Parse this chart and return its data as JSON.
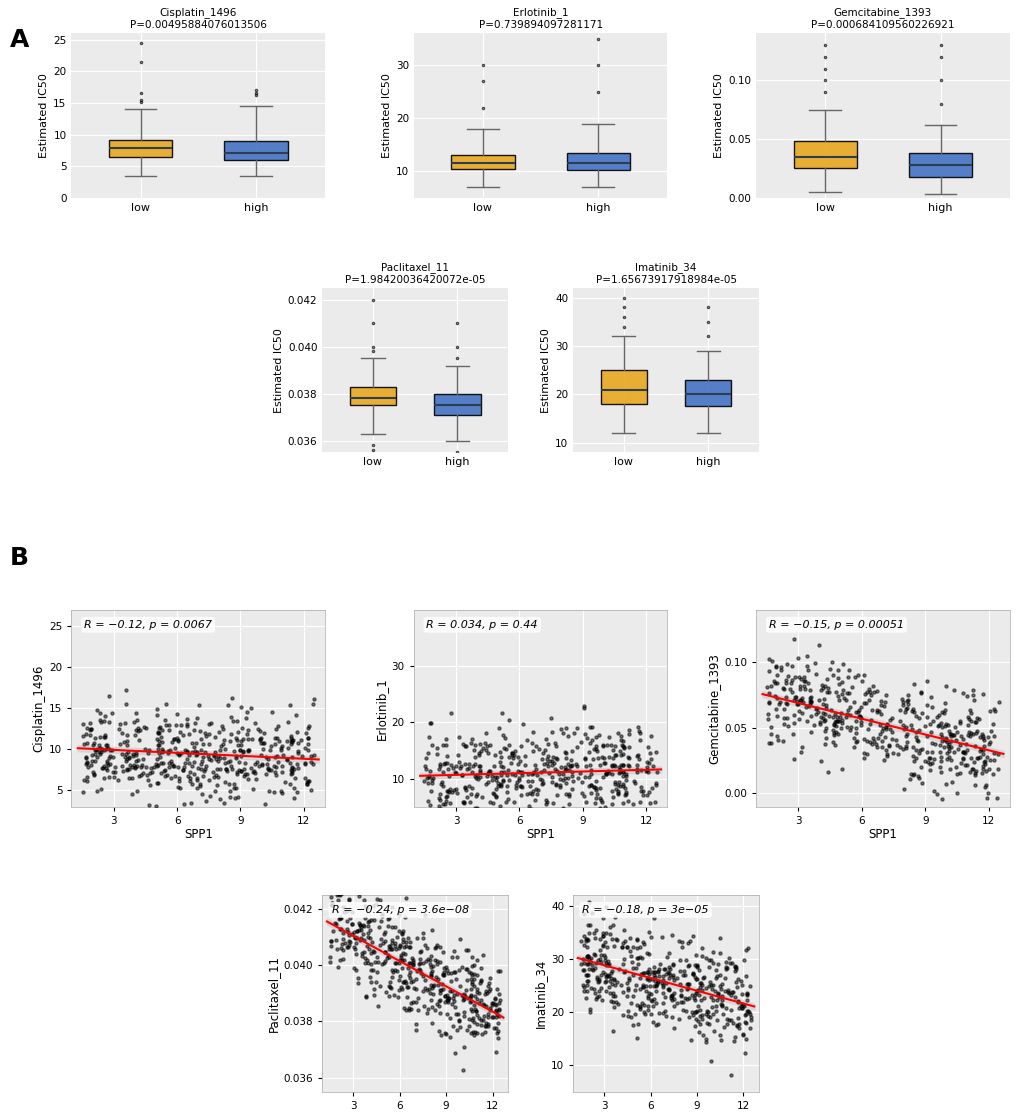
{
  "background_color": "#e8e8e8",
  "panel_bg": "#ebebeb",
  "box_colors": [
    "#E8A820",
    "#4472C4"
  ],
  "box_labels": [
    "low",
    "high"
  ],
  "boxplot_A": [
    {
      "title": "Cisplatin_1496",
      "pvalue": "P=0.00495884076013506",
      "ylabel": "Estimated IC50",
      "low": {
        "median": 7.8,
        "q1": 6.5,
        "q3": 9.2,
        "whislo": 3.5,
        "whishi": 14.0,
        "fliers_high": [
          15.2,
          15.5,
          16.5,
          21.5,
          24.5
        ],
        "fliers_low": []
      },
      "high": {
        "median": 7.0,
        "q1": 6.0,
        "q3": 9.0,
        "whislo": 3.5,
        "whishi": 14.5,
        "fliers_high": [
          16.2,
          16.5,
          17.0
        ],
        "fliers_low": []
      },
      "ylim": [
        0,
        26
      ],
      "yticks": [
        0,
        5,
        10,
        15,
        20,
        25
      ]
    },
    {
      "title": "Erlotinib_1",
      "pvalue": "P=0.739894097281171",
      "ylabel": "Estimated IC50",
      "low": {
        "median": 11.5,
        "q1": 10.5,
        "q3": 13.0,
        "whislo": 7.0,
        "whishi": 18.0,
        "fliers_high": [
          22.0,
          27.0,
          30.0
        ],
        "fliers_low": []
      },
      "high": {
        "median": 11.5,
        "q1": 10.2,
        "q3": 13.5,
        "whislo": 7.0,
        "whishi": 19.0,
        "fliers_high": [
          25.0,
          30.0,
          35.0
        ],
        "fliers_low": []
      },
      "ylim": [
        5,
        36
      ],
      "yticks": [
        10,
        20,
        30
      ]
    },
    {
      "title": "Gemcitabine_1393",
      "pvalue": "P=0.000684109560226921",
      "ylabel": "Estimated IC50",
      "low": {
        "median": 0.035,
        "q1": 0.025,
        "q3": 0.048,
        "whislo": 0.005,
        "whishi": 0.075,
        "fliers_high": [
          0.09,
          0.1,
          0.11,
          0.12,
          0.13
        ],
        "fliers_low": []
      },
      "high": {
        "median": 0.028,
        "q1": 0.018,
        "q3": 0.038,
        "whislo": 0.003,
        "whishi": 0.062,
        "fliers_high": [
          0.08,
          0.1,
          0.12,
          0.13
        ],
        "fliers_low": []
      },
      "ylim": [
        0,
        0.14
      ],
      "yticks": [
        0.0,
        0.05,
        0.1
      ]
    }
  ],
  "boxplot_B": [
    {
      "title": "Paclitaxel_11",
      "pvalue": "P=1.98420036420072e-05",
      "ylabel": "Estimated IC50",
      "low": {
        "median": 0.0378,
        "q1": 0.0375,
        "q3": 0.0383,
        "whislo": 0.0363,
        "whishi": 0.0395,
        "fliers_high": [
          0.0398,
          0.04,
          0.041,
          0.042
        ],
        "fliers_low": [
          0.0358,
          0.0356
        ]
      },
      "high": {
        "median": 0.0375,
        "q1": 0.0371,
        "q3": 0.038,
        "whislo": 0.036,
        "whishi": 0.0392,
        "fliers_high": [
          0.0395,
          0.04,
          0.041
        ],
        "fliers_low": [
          0.0355
        ]
      },
      "ylim": [
        0.0355,
        0.0425
      ],
      "yticks": [
        0.036,
        0.038,
        0.04,
        0.042
      ]
    },
    {
      "title": "Imatinib_34",
      "pvalue": "P=1.65673917918984e-05",
      "ylabel": "Estimated IC50",
      "low": {
        "median": 21.0,
        "q1": 18.0,
        "q3": 25.0,
        "whislo": 12.0,
        "whishi": 32.0,
        "fliers_high": [
          34.0,
          36.0,
          38.0,
          40.0
        ],
        "fliers_low": []
      },
      "high": {
        "median": 20.0,
        "q1": 17.5,
        "q3": 23.0,
        "whislo": 12.0,
        "whishi": 29.0,
        "fliers_high": [
          32.0,
          35.0,
          38.0
        ],
        "fliers_low": []
      },
      "ylim": [
        8,
        42
      ],
      "yticks": [
        10,
        20,
        30,
        40
      ]
    }
  ],
  "scatter_A": [
    {
      "ylabel": "Cisplatin_1496",
      "xlabel": "SPP1",
      "R": -0.12,
      "p": 0.0067,
      "annotation": "R = −0.12, p = 0.0067",
      "xlim": [
        1,
        13
      ],
      "xticks": [
        3,
        6,
        9,
        12
      ],
      "ylim": [
        3,
        27
      ],
      "yticks": [
        5,
        10,
        15,
        20,
        25
      ],
      "slope": -0.12,
      "intercept": 9.5,
      "x_center": 6.5
    },
    {
      "ylabel": "Erlotinib_1",
      "xlabel": "SPP1",
      "R": 0.034,
      "p": 0.44,
      "annotation": "R = 0.034, p = 0.44",
      "xlim": [
        1,
        13
      ],
      "xticks": [
        3,
        6,
        9,
        12
      ],
      "ylim": [
        5,
        40
      ],
      "yticks": [
        10,
        20,
        30
      ],
      "slope": 0.1,
      "intercept": 11.0,
      "x_center": 6.5
    },
    {
      "ylabel": "Gemcitabine_1393",
      "xlabel": "SPP1",
      "R": -0.15,
      "p": 0.00051,
      "annotation": "R = −0.15, p = 0.00051",
      "xlim": [
        1,
        13
      ],
      "xticks": [
        3,
        6,
        9,
        12
      ],
      "ylim": [
        -0.01,
        0.14
      ],
      "yticks": [
        0.0,
        0.05,
        0.1
      ],
      "slope": -0.004,
      "intercept": 0.055,
      "x_center": 6.5
    }
  ],
  "scatter_B": [
    {
      "ylabel": "Paclitaxel_11",
      "xlabel": "SPP1",
      "R": -0.24,
      "p": "3.6e-08",
      "annotation": "R = −0.24, p = 3.6e−08",
      "xlim": [
        1,
        13
      ],
      "xticks": [
        3,
        6,
        9,
        12
      ],
      "ylim": [
        0.0355,
        0.0425
      ],
      "yticks": [
        0.036,
        0.038,
        0.04,
        0.042
      ],
      "slope": -0.0003,
      "intercept": 0.04,
      "x_center": 6.5
    },
    {
      "ylabel": "Imatinib_34",
      "xlabel": "SPP1",
      "R": -0.18,
      "p": "3e-05",
      "annotation": "R = −0.18, p = 3e−05",
      "xlim": [
        1,
        13
      ],
      "xticks": [
        3,
        6,
        9,
        12
      ],
      "ylim": [
        5,
        42
      ],
      "yticks": [
        10,
        20,
        30,
        40
      ],
      "slope": -0.8,
      "intercept": 26.0,
      "x_center": 6.5
    }
  ]
}
